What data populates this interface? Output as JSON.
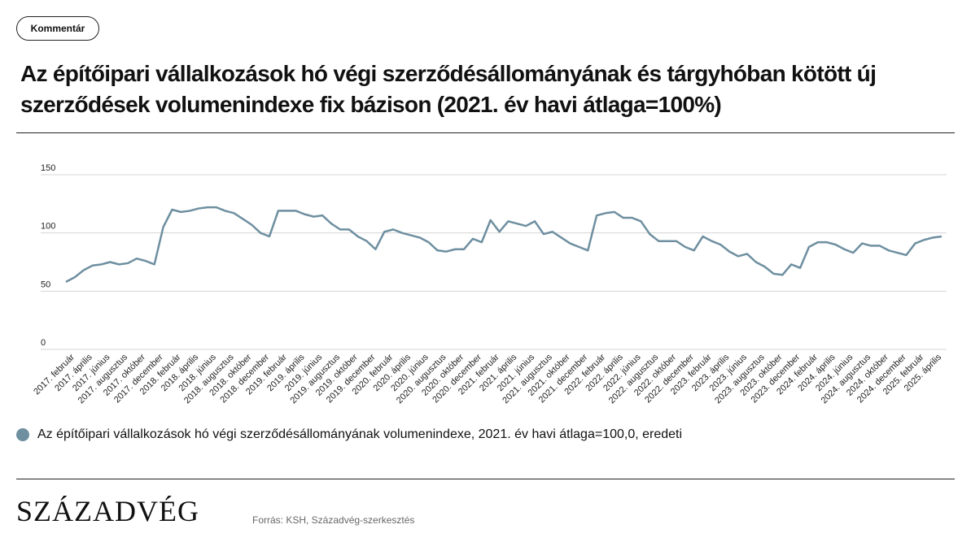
{
  "page": {
    "button": "Kommentár",
    "logo": "SZÁZADVÉG",
    "source": "Forrás: KSH, Századvég-szerkesztés"
  },
  "chart_data": {
    "type": "line",
    "title": "Az építőipari vállalkozások hó végi szerződésállományának és tárgyhóban kötött új szerződések volumenindexe fix bázison (2021. év havi átlaga=100%)",
    "categories": [
      null,
      "2017. február",
      null,
      "2017. április",
      null,
      "2017. június",
      null,
      "2017. augusztus",
      null,
      "2017. október",
      null,
      "2017. december",
      null,
      "2018. február",
      null,
      "2018. április",
      null,
      "2018. június",
      null,
      "2018. augusztus",
      null,
      "2018. október",
      null,
      "2018. december",
      null,
      "2019. február",
      null,
      "2019. április",
      null,
      "2019. június",
      null,
      "2019. augusztus",
      null,
      "2019. október",
      null,
      "2019. december",
      null,
      "2020. február",
      null,
      "2020. április",
      null,
      "2020. június",
      null,
      "2020. augusztus",
      null,
      "2020. október",
      null,
      "2020. december",
      null,
      "2021. február",
      null,
      "2021. április",
      null,
      "2021. június",
      null,
      "2021. augusztus",
      null,
      "2021. október",
      null,
      "2021. december",
      null,
      "2022. február",
      null,
      "2022. április",
      null,
      "2022. június",
      null,
      "2022. augusztus",
      null,
      "2022. október",
      null,
      "2022. december",
      null,
      "2023. február",
      null,
      "2023. április",
      null,
      "2023. június",
      null,
      "2023. augusztus",
      null,
      "2023. október",
      null,
      "2023. december",
      null,
      "2024. február",
      null,
      "2024. április",
      null,
      "2024. június",
      null,
      "2024. augusztus",
      null,
      "2024. október",
      null,
      "2024. december",
      null,
      "2025. február",
      null,
      "2025. április"
    ],
    "series": [
      {
        "name": "Az építőipari vállalkozások hó végi szerződésállományának volumenindexe, 2021. év havi átlaga=100,0, eredeti",
        "color": "#6e8fa0",
        "values": [
          58,
          62,
          68,
          72,
          73,
          75,
          73,
          74,
          78,
          76,
          73,
          105,
          120,
          118,
          119,
          121,
          122,
          122,
          119,
          117,
          112,
          107,
          100,
          97,
          119,
          119,
          119,
          116,
          114,
          115,
          108,
          103,
          103,
          97,
          93,
          86,
          101,
          103,
          100,
          98,
          96,
          92,
          85,
          84,
          86,
          86,
          95,
          92,
          111,
          101,
          110,
          108,
          106,
          110,
          99,
          101,
          96,
          91,
          88,
          85,
          115,
          117,
          118,
          113,
          113,
          110,
          99,
          93,
          93,
          93,
          88,
          85,
          97,
          93,
          90,
          84,
          80,
          82,
          75,
          71,
          65,
          64,
          73,
          70,
          88,
          92,
          92,
          90,
          86,
          83,
          91,
          89,
          89,
          85,
          83,
          81,
          91,
          94,
          96,
          97
        ]
      }
    ],
    "ylim": [
      0,
      150
    ],
    "yticks": [
      0,
      50,
      100,
      150
    ],
    "grid": true
  }
}
